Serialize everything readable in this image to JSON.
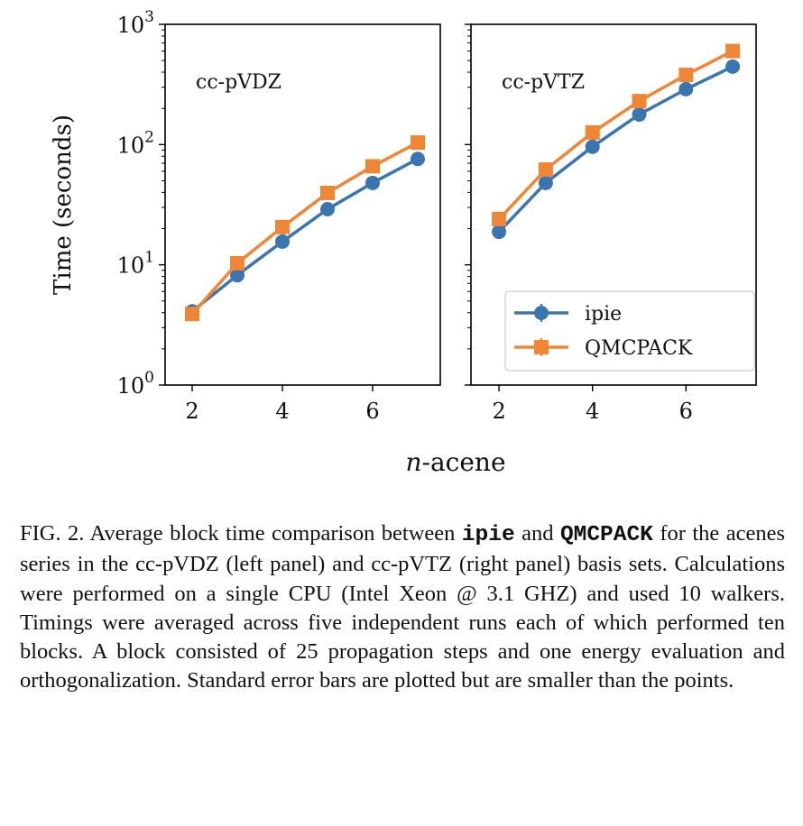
{
  "chart_data": [
    {
      "type": "line",
      "panel": "left",
      "annotation": "cc-pVDZ",
      "x": [
        2,
        3,
        4,
        5,
        6,
        7
      ],
      "yscale": "log",
      "ylim": [
        1,
        1000
      ],
      "xlim": [
        1.4,
        7.5
      ],
      "xticks": [
        "2",
        "4",
        "6"
      ],
      "yticks": [
        "10^0",
        "10^1",
        "10^2",
        "10^3"
      ],
      "ylabel": "Time (seconds)",
      "series": [
        {
          "name": "ipie",
          "color": "#3b75af",
          "marker": "circle",
          "values": [
            4.1,
            8.2,
            15.6,
            29,
            48,
            76
          ]
        },
        {
          "name": "QMCPACK",
          "color": "#ef8636",
          "marker": "square",
          "values": [
            3.9,
            10.3,
            20.6,
            39.6,
            66,
            104
          ]
        }
      ]
    },
    {
      "type": "line",
      "panel": "right",
      "annotation": "cc-pVTZ",
      "x": [
        2,
        3,
        4,
        5,
        6,
        7
      ],
      "yscale": "log",
      "ylim": [
        1,
        1000
      ],
      "xlim": [
        1.4,
        7.5
      ],
      "xticks": [
        "2",
        "4",
        "6"
      ],
      "series": [
        {
          "name": "ipie",
          "color": "#3b75af",
          "marker": "circle",
          "values": [
            18.8,
            48,
            96,
            178,
            289,
            445
          ]
        },
        {
          "name": "QMCPACK",
          "color": "#ef8636",
          "marker": "square",
          "values": [
            24,
            62,
            126,
            230,
            380,
            600
          ]
        }
      ],
      "legend": {
        "placement": "lower-right",
        "entries": [
          "ipie",
          "QMCPACK"
        ]
      }
    }
  ],
  "xlabel_italic": "n",
  "xlabel_rest": "-acene",
  "caption": {
    "p1": "FIG. 2.   Average block time comparison between ",
    "code1": "ipie",
    "p2": " and ",
    "code2": "QMCPACK",
    "p3": " for the acenes series in the cc-pVDZ (left panel) and cc-pVTZ (right panel) basis sets. Calculations were performed on a single CPU (Intel Xeon @ 3.1 GHZ) and used 10 walkers. Timings were averaged across five independent runs each of which performed ten blocks. A block consisted of 25 propagation steps and one energy evaluation and orthogonalization. Standard error bars are plotted but are smaller than the points."
  }
}
